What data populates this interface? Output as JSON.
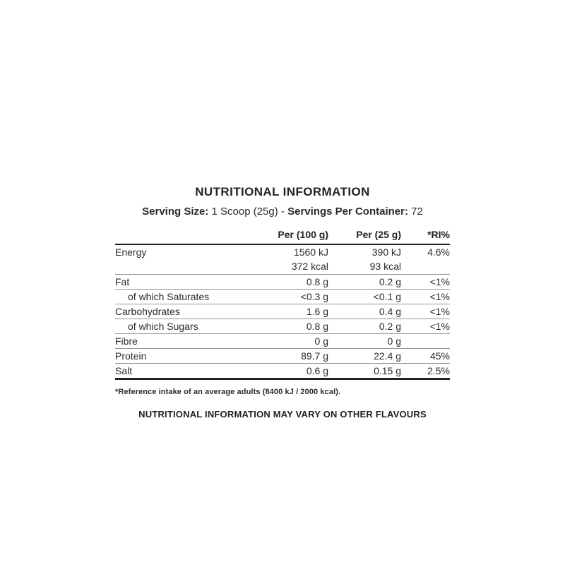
{
  "title": "NUTRITIONAL INFORMATION",
  "serving": {
    "size_label": "Serving Size:",
    "size_value": "1 Scoop (25g)",
    "separator": "-",
    "container_label": "Servings Per Container:",
    "container_value": "72"
  },
  "table": {
    "headers": [
      "",
      "Per (100 g)",
      "Per (25 g)",
      "*RI%"
    ],
    "rows": [
      {
        "name": "Energy",
        "per100": "1560 kJ",
        "per25": "390 kJ",
        "ri": "4.6%"
      },
      {
        "name": "",
        "per100": "372 kcal",
        "per25": "93 kcal",
        "ri": ""
      },
      {
        "name": "Fat",
        "per100": "0.8 g",
        "per25": "0.2 g",
        "ri": "<1%"
      },
      {
        "name": "of which Saturates",
        "per100": "<0.3 g",
        "per25": "<0.1 g",
        "ri": "<1%"
      },
      {
        "name": "Carbohydrates",
        "per100": "1.6 g",
        "per25": "0.4 g",
        "ri": "<1%"
      },
      {
        "name": "of which Sugars",
        "per100": "0.8 g",
        "per25": "0.2 g",
        "ri": "<1%"
      },
      {
        "name": "Fibre",
        "per100": "0 g",
        "per25": "0 g",
        "ri": ""
      },
      {
        "name": "Protein",
        "per100": "89.7 g",
        "per25": "22.4 g",
        "ri": "45%"
      },
      {
        "name": "Salt",
        "per100": "0.6 g",
        "per25": "0.15 g",
        "ri": "2.5%"
      }
    ]
  },
  "footnote": "*Reference intake of an average adults (8400 kJ / 2000 kcal).",
  "disclaimer": "NUTRITIONAL INFORMATION MAY VARY ON OTHER FLAVOURS",
  "colors": {
    "text": "#262626",
    "rule_thin": "#949494",
    "rule_thick": "#222222",
    "background": "#ffffff"
  }
}
